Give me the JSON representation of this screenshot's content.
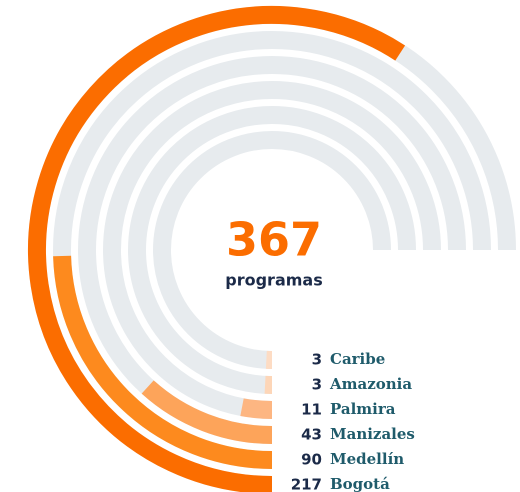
{
  "chart_data": {
    "type": "radial_bar",
    "total": 367,
    "total_label": "programas",
    "categories": [
      "Bogotá",
      "Medellín",
      "Manizales",
      "Palmira",
      "Amazonia",
      "Caribe"
    ],
    "values": [
      217,
      90,
      43,
      11,
      3,
      3
    ],
    "colors": [
      "#fb6d00",
      "#fd8a1e",
      "#fda45a",
      "#fdb682",
      "#fdd6b8",
      "#fddcc4"
    ],
    "track_color": "#e7ebee",
    "xlim": [
      0,
      275
    ]
  }
}
